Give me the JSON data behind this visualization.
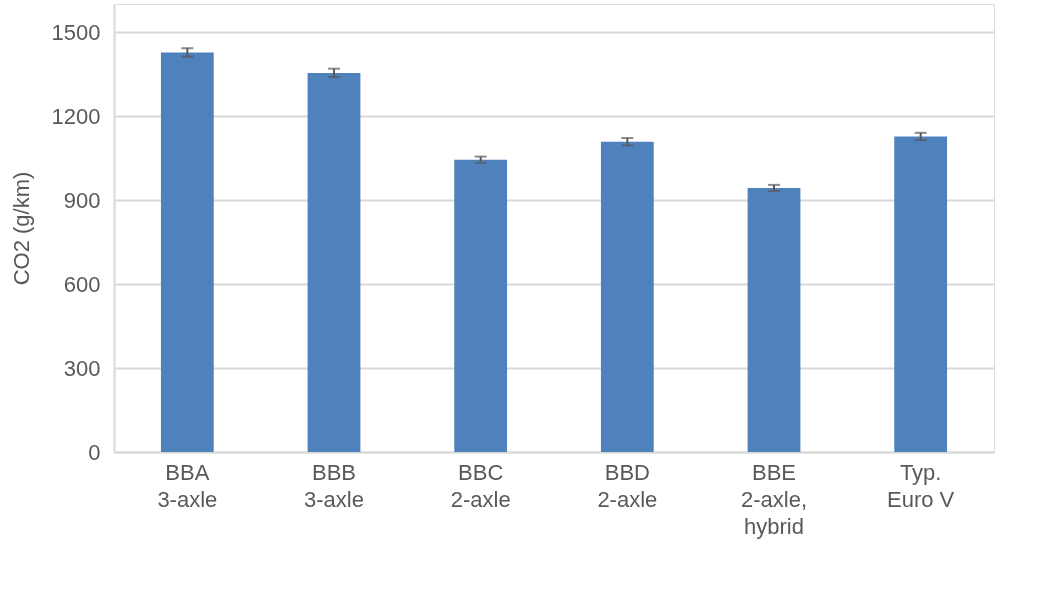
{
  "chart_data": {
    "type": "bar",
    "ylabel": "CO2 (g/km)",
    "categories": [
      "BBA\n3-axle",
      "BBB\n3-axle",
      "BBC\n2-axle",
      "BBD\n2-axle",
      "BBE\n2-axle,\nhybrid",
      "Typ.\nEuro V"
    ],
    "values": [
      1427,
      1354,
      1044,
      1108,
      943,
      1127
    ],
    "errors": [
      15,
      15,
      11,
      13,
      11,
      13
    ],
    "color": "#4f81bd",
    "ylim": [
      0,
      1600
    ],
    "yticks": [
      0,
      300,
      600,
      900,
      1200,
      1500
    ],
    "grid": "y"
  }
}
